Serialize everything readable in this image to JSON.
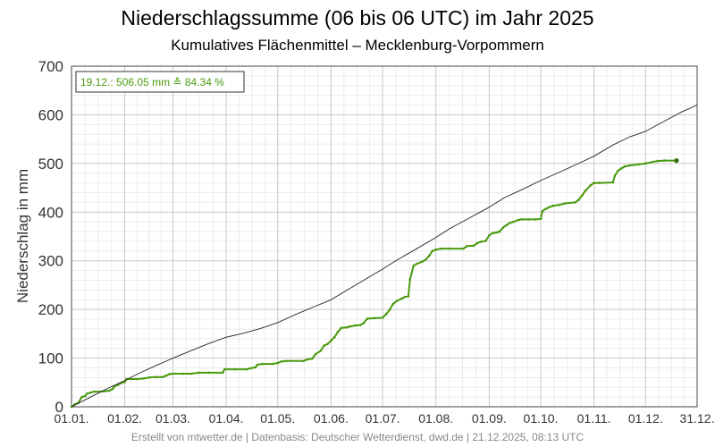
{
  "chart_data": {
    "type": "line",
    "title": "Niederschlagssumme (06 bis 06 UTC) im Jahr 2025",
    "subtitle": "Kumulatives Flächenmittel – Mecklenburg-Vorpommern",
    "ylabel": "Niederschlag in mm",
    "xlabel": "",
    "ylim": [
      0,
      700
    ],
    "y_ticks": [
      "0",
      "100",
      "200",
      "300",
      "400",
      "500",
      "600",
      "700"
    ],
    "x_ticks": [
      {
        "label": "01.01.",
        "day": 0
      },
      {
        "label": "01.02.",
        "day": 31
      },
      {
        "label": "01.03.",
        "day": 59
      },
      {
        "label": "01.04.",
        "day": 90
      },
      {
        "label": "01.05.",
        "day": 120
      },
      {
        "label": "01.06.",
        "day": 151
      },
      {
        "label": "01.07.",
        "day": 181
      },
      {
        "label": "01.08.",
        "day": 212
      },
      {
        "label": "01.09.",
        "day": 243
      },
      {
        "label": "01.10.",
        "day": 273
      },
      {
        "label": "01.11.",
        "day": 304
      },
      {
        "label": "01.12.",
        "day": 334
      },
      {
        "label": "31.12.",
        "day": 364
      }
    ],
    "grid": true,
    "annotation": "19.12.: 506.05 mm  ≙  84.34 %",
    "series": [
      {
        "key": "actual",
        "color": "#4a9a0e",
        "points": [
          [
            0,
            0
          ],
          [
            2,
            5
          ],
          [
            4,
            8
          ],
          [
            6,
            20
          ],
          [
            8,
            22
          ],
          [
            9,
            27
          ],
          [
            11,
            29
          ],
          [
            13,
            31
          ],
          [
            16,
            31
          ],
          [
            19,
            32
          ],
          [
            22,
            33
          ],
          [
            24,
            37
          ],
          [
            25,
            42
          ],
          [
            27,
            45
          ],
          [
            29,
            49
          ],
          [
            31,
            51
          ],
          [
            32,
            57
          ],
          [
            35,
            57
          ],
          [
            38,
            57
          ],
          [
            42,
            58
          ],
          [
            45,
            60
          ],
          [
            49,
            61
          ],
          [
            53,
            61
          ],
          [
            55,
            64
          ],
          [
            57,
            67
          ],
          [
            59,
            68
          ],
          [
            65,
            68
          ],
          [
            70,
            68
          ],
          [
            74,
            70
          ],
          [
            80,
            70
          ],
          [
            88,
            70
          ],
          [
            89,
            77
          ],
          [
            95,
            77
          ],
          [
            102,
            77
          ],
          [
            104,
            79
          ],
          [
            107,
            81
          ],
          [
            108,
            86
          ],
          [
            111,
            88
          ],
          [
            117,
            88
          ],
          [
            120,
            90
          ],
          [
            122,
            93
          ],
          [
            125,
            94
          ],
          [
            135,
            94
          ],
          [
            137,
            97
          ],
          [
            140,
            99
          ],
          [
            142,
            108
          ],
          [
            145,
            115
          ],
          [
            147,
            126
          ],
          [
            149,
            129
          ],
          [
            151,
            136
          ],
          [
            153,
            143
          ],
          [
            155,
            154
          ],
          [
            157,
            162
          ],
          [
            160,
            163
          ],
          [
            162,
            165
          ],
          [
            165,
            167
          ],
          [
            168,
            168
          ],
          [
            170,
            172
          ],
          [
            172,
            181
          ],
          [
            176,
            182
          ],
          [
            181,
            183
          ],
          [
            183,
            190
          ],
          [
            185,
            199
          ],
          [
            187,
            211
          ],
          [
            189,
            217
          ],
          [
            192,
            222
          ],
          [
            194,
            226
          ],
          [
            196,
            227
          ],
          [
            197,
            262
          ],
          [
            199,
            290
          ],
          [
            201,
            294
          ],
          [
            204,
            298
          ],
          [
            206,
            302
          ],
          [
            208,
            310
          ],
          [
            210,
            320
          ],
          [
            212,
            323
          ],
          [
            215,
            325
          ],
          [
            220,
            325
          ],
          [
            228,
            325
          ],
          [
            230,
            330
          ],
          [
            234,
            331
          ],
          [
            236,
            336
          ],
          [
            238,
            339
          ],
          [
            241,
            341
          ],
          [
            243,
            352
          ],
          [
            245,
            357
          ],
          [
            247,
            358
          ],
          [
            249,
            360
          ],
          [
            251,
            368
          ],
          [
            253,
            373
          ],
          [
            255,
            378
          ],
          [
            257,
            380
          ],
          [
            260,
            384
          ],
          [
            262,
            385
          ],
          [
            266,
            385
          ],
          [
            270,
            385
          ],
          [
            273,
            386
          ],
          [
            274,
            402
          ],
          [
            276,
            407
          ],
          [
            278,
            410
          ],
          [
            280,
            413
          ],
          [
            284,
            415
          ],
          [
            287,
            418
          ],
          [
            293,
            420
          ],
          [
            295,
            425
          ],
          [
            297,
            434
          ],
          [
            299,
            444
          ],
          [
            302,
            455
          ],
          [
            304,
            460
          ],
          [
            307,
            460
          ],
          [
            315,
            461
          ],
          [
            316,
            474
          ],
          [
            318,
            485
          ],
          [
            320,
            490
          ],
          [
            322,
            494
          ],
          [
            325,
            496
          ],
          [
            330,
            498
          ],
          [
            334,
            500
          ],
          [
            338,
            503
          ],
          [
            341,
            505
          ],
          [
            345,
            506
          ],
          [
            352,
            506.05
          ]
        ]
      },
      {
        "key": "reference",
        "color": "#222222",
        "points": [
          [
            0,
            0
          ],
          [
            10,
            18
          ],
          [
            20,
            36
          ],
          [
            31,
            54
          ],
          [
            40,
            70
          ],
          [
            50,
            86
          ],
          [
            59,
            100
          ],
          [
            70,
            116
          ],
          [
            80,
            130
          ],
          [
            90,
            143
          ],
          [
            100,
            151
          ],
          [
            110,
            161
          ],
          [
            120,
            173
          ],
          [
            130,
            189
          ],
          [
            140,
            204
          ],
          [
            151,
            220
          ],
          [
            160,
            239
          ],
          [
            170,
            260
          ],
          [
            181,
            283
          ],
          [
            190,
            303
          ],
          [
            200,
            323
          ],
          [
            212,
            348
          ],
          [
            220,
            366
          ],
          [
            230,
            385
          ],
          [
            243,
            410
          ],
          [
            252,
            430
          ],
          [
            262,
            446
          ],
          [
            273,
            465
          ],
          [
            285,
            484
          ],
          [
            295,
            500
          ],
          [
            304,
            515
          ],
          [
            315,
            538
          ],
          [
            325,
            555
          ],
          [
            334,
            566
          ],
          [
            345,
            587
          ],
          [
            355,
            606
          ],
          [
            364,
            620
          ]
        ]
      }
    ]
  },
  "footer": "Erstellt von mtwetter.de | Datenbasis: Deutscher Wetterdienst, dwd.de | 21.12.2025, 08:13 UTC"
}
